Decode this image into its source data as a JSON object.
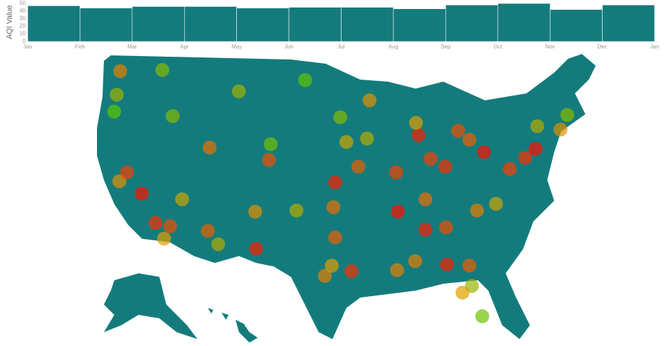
{
  "chart_data": {
    "type": "bar",
    "y_label": "AQI Value",
    "xtick_labels": [
      "Jan",
      "Feb",
      "Mar",
      "Apr",
      "May",
      "Jun",
      "Jul",
      "Aug",
      "Sep",
      "Oct",
      "Nov",
      "Dec",
      "Jan"
    ],
    "values": [
      47,
      44,
      46,
      46,
      44,
      45,
      45,
      43,
      48,
      50,
      42,
      48
    ],
    "color": "#147b7d",
    "ylim": [
      0,
      50
    ],
    "yticks": [
      0,
      10,
      20,
      30,
      40,
      50
    ]
  },
  "map": {
    "type": "scatter-geo",
    "land_color": "#147b7d",
    "color_domain": [
      0,
      100
    ],
    "color_stops": [
      "#00e000",
      "#e0a000",
      "#ff0000"
    ],
    "points": [
      {
        "lon": -122.3,
        "lat": 47.6,
        "aqi": 60
      },
      {
        "lon": -117.4,
        "lat": 47.7,
        "aqi": 30
      },
      {
        "lon": -122.7,
        "lat": 45.5,
        "aqi": 35
      },
      {
        "lon": -123.0,
        "lat": 44.0,
        "aqi": 20
      },
      {
        "lon": -122.4,
        "lat": 37.8,
        "aqi": 55
      },
      {
        "lon": -121.5,
        "lat": 38.6,
        "aqi": 80
      },
      {
        "lon": -119.8,
        "lat": 36.7,
        "aqi": 95
      },
      {
        "lon": -118.2,
        "lat": 34.1,
        "aqi": 85
      },
      {
        "lon": -117.2,
        "lat": 32.7,
        "aqi": 50
      },
      {
        "lon": -116.5,
        "lat": 33.8,
        "aqi": 75
      },
      {
        "lon": -115.1,
        "lat": 36.2,
        "aqi": 45
      },
      {
        "lon": -112.1,
        "lat": 33.4,
        "aqi": 70
      },
      {
        "lon": -110.9,
        "lat": 32.2,
        "aqi": 40
      },
      {
        "lon": -111.9,
        "lat": 40.8,
        "aqi": 65
      },
      {
        "lon": -116.2,
        "lat": 43.6,
        "aqi": 30
      },
      {
        "lon": -108.5,
        "lat": 45.8,
        "aqi": 35
      },
      {
        "lon": -105.0,
        "lat": 39.7,
        "aqi": 75
      },
      {
        "lon": -104.8,
        "lat": 41.1,
        "aqi": 25
      },
      {
        "lon": -106.6,
        "lat": 35.1,
        "aqi": 55
      },
      {
        "lon": -106.5,
        "lat": 31.8,
        "aqi": 90
      },
      {
        "lon": -101.8,
        "lat": 35.2,
        "aqi": 40
      },
      {
        "lon": -97.3,
        "lat": 32.8,
        "aqi": 70
      },
      {
        "lon": -95.4,
        "lat": 29.8,
        "aqi": 85
      },
      {
        "lon": -98.5,
        "lat": 29.4,
        "aqi": 60
      },
      {
        "lon": -97.7,
        "lat": 30.3,
        "aqi": 50
      },
      {
        "lon": -97.5,
        "lat": 35.5,
        "aqi": 65
      },
      {
        "lon": -97.3,
        "lat": 37.7,
        "aqi": 90
      },
      {
        "lon": -96.0,
        "lat": 41.3,
        "aqi": 45
      },
      {
        "lon": -100.8,
        "lat": 46.8,
        "aqi": 20
      },
      {
        "lon": -96.7,
        "lat": 43.5,
        "aqi": 30
      },
      {
        "lon": -93.3,
        "lat": 45.0,
        "aqi": 55
      },
      {
        "lon": -93.6,
        "lat": 41.6,
        "aqi": 40
      },
      {
        "lon": -94.6,
        "lat": 39.1,
        "aqi": 70
      },
      {
        "lon": -90.2,
        "lat": 38.6,
        "aqi": 80
      },
      {
        "lon": -90.1,
        "lat": 29.9,
        "aqi": 60
      },
      {
        "lon": -90.0,
        "lat": 35.1,
        "aqi": 95
      },
      {
        "lon": -87.6,
        "lat": 41.9,
        "aqi": 90
      },
      {
        "lon": -87.9,
        "lat": 43.0,
        "aqi": 50
      },
      {
        "lon": -83.0,
        "lat": 42.3,
        "aqi": 75
      },
      {
        "lon": -86.2,
        "lat": 39.8,
        "aqi": 80
      },
      {
        "lon": -84.5,
        "lat": 39.1,
        "aqi": 85
      },
      {
        "lon": -81.7,
        "lat": 41.5,
        "aqi": 70
      },
      {
        "lon": -80.0,
        "lat": 40.4,
        "aqi": 95
      },
      {
        "lon": -84.4,
        "lat": 33.7,
        "aqi": 75
      },
      {
        "lon": -86.8,
        "lat": 33.5,
        "aqi": 90
      },
      {
        "lon": -86.8,
        "lat": 36.2,
        "aqi": 65
      },
      {
        "lon": -80.8,
        "lat": 35.2,
        "aqi": 60
      },
      {
        "lon": -78.6,
        "lat": 35.8,
        "aqi": 45
      },
      {
        "lon": -77.0,
        "lat": 38.9,
        "aqi": 80
      },
      {
        "lon": -75.2,
        "lat": 39.9,
        "aqi": 85
      },
      {
        "lon": -74.0,
        "lat": 40.7,
        "aqi": 95
      },
      {
        "lon": -71.1,
        "lat": 42.4,
        "aqi": 55
      },
      {
        "lon": -73.8,
        "lat": 42.7,
        "aqi": 40
      },
      {
        "lon": -70.3,
        "lat": 43.7,
        "aqi": 30
      },
      {
        "lon": -81.4,
        "lat": 28.5,
        "aqi": 35
      },
      {
        "lon": -80.2,
        "lat": 25.8,
        "aqi": 25
      },
      {
        "lon": -82.5,
        "lat": 27.9,
        "aqi": 50
      },
      {
        "lon": -81.7,
        "lat": 30.3,
        "aqi": 70
      },
      {
        "lon": -84.3,
        "lat": 30.4,
        "aqi": 90
      },
      {
        "lon": -88.0,
        "lat": 30.7,
        "aqi": 60
      }
    ]
  }
}
